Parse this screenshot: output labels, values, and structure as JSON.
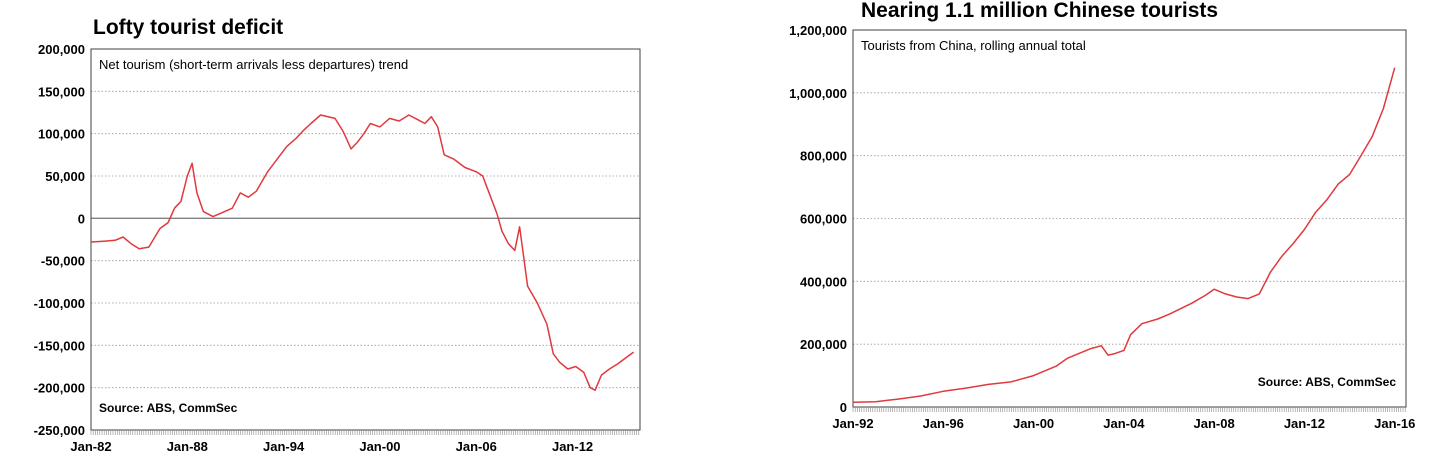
{
  "chart_data": [
    {
      "type": "line",
      "title": "Lofty tourist deficit",
      "annotation": "Net tourism (short-term arrivals less departures) trend",
      "source": "Source: ABS, CommSec",
      "ylim": [
        -250000,
        200000
      ],
      "y_ticks": [
        200000,
        150000,
        100000,
        50000,
        0,
        -50000,
        -100000,
        -150000,
        -200000,
        -250000
      ],
      "y_tick_labels": [
        "200,000",
        "150,000",
        "100,000",
        "50,000",
        "0",
        "-50,000",
        "-100,000",
        "-150,000",
        "-200,000",
        "-250,000"
      ],
      "xlim": [
        1982.0,
        2016.2
      ],
      "x_ticks": [
        1982,
        1988,
        1994,
        2000,
        2006,
        2012
      ],
      "x_tick_labels": [
        "Jan-82",
        "Jan-88",
        "Jan-94",
        "Jan-00",
        "Jan-06",
        "Jan-12"
      ],
      "grid": true,
      "line_color": "#e0393e",
      "series": [
        {
          "x": [
            1982.0,
            1982.8,
            1983.5,
            1984.0,
            1984.5,
            1985.0,
            1985.6,
            1986.3,
            1986.8,
            1987.2,
            1987.6,
            1988.0,
            1988.3,
            1988.6,
            1989.0,
            1989.6,
            1990.2,
            1990.8,
            1991.3,
            1991.8,
            1992.3,
            1993.0,
            1993.6,
            1994.2,
            1994.8,
            1995.3,
            1995.7,
            1996.3,
            1997.2,
            1997.7,
            1998.2,
            1998.6,
            1999.0,
            1999.4,
            2000.0,
            2000.6,
            2001.2,
            2001.8,
            2002.4,
            2002.8,
            2003.2,
            2003.6,
            2004.0,
            2004.6,
            2005.3,
            2006.0,
            2006.4,
            2006.7,
            2007.3,
            2007.6,
            2008.0,
            2008.4,
            2008.7,
            2009.2,
            2009.8,
            2010.4,
            2010.8,
            2011.2,
            2011.7,
            2012.2,
            2012.7,
            2013.1,
            2013.4,
            2013.8,
            2014.3,
            2014.8,
            2015.3,
            2015.8
          ],
          "y": [
            -28000,
            -27000,
            -26000,
            -22000,
            -30000,
            -36000,
            -34000,
            -12000,
            -5000,
            12000,
            20000,
            50000,
            65000,
            30000,
            8000,
            2000,
            7000,
            12000,
            30000,
            25000,
            32000,
            55000,
            70000,
            85000,
            95000,
            105000,
            112000,
            122000,
            118000,
            103000,
            82000,
            90000,
            100000,
            112000,
            108000,
            118000,
            115000,
            122000,
            116000,
            112000,
            120000,
            108000,
            75000,
            70000,
            60000,
            55000,
            50000,
            35000,
            5000,
            -15000,
            -30000,
            -38000,
            -10000,
            -80000,
            -100000,
            -125000,
            -160000,
            -170000,
            -178000,
            -175000,
            -182000,
            -200000,
            -203000,
            -185000,
            -178000,
            -172000,
            -165000,
            -158000
          ]
        }
      ]
    },
    {
      "type": "line",
      "title": "Nearing 1.1 million Chinese tourists",
      "annotation": "Tourists from China, rolling annual total",
      "source": "Source: ABS, CommSec",
      "ylim": [
        0,
        1200000
      ],
      "y_ticks": [
        0,
        200000,
        400000,
        600000,
        800000,
        1000000,
        1200000
      ],
      "y_tick_labels": [
        "0",
        "200,000",
        "400,000",
        "600,000",
        "800,000",
        "1,000,000",
        "1,200,000"
      ],
      "xlim": [
        1992.0,
        2016.5
      ],
      "x_ticks": [
        1992,
        1996,
        2000,
        2004,
        2008,
        2012,
        2016
      ],
      "x_tick_labels": [
        "Jan-92",
        "Jan-96",
        "Jan-00",
        "Jan-04",
        "Jan-08",
        "Jan-12",
        "Jan-16"
      ],
      "grid": true,
      "line_color": "#e0393e",
      "series": [
        {
          "x": [
            1992.0,
            1993.0,
            1994.0,
            1995.0,
            1996.0,
            1997.0,
            1998.0,
            1999.0,
            2000.0,
            2001.0,
            2001.5,
            2002.0,
            2002.5,
            2003.0,
            2003.3,
            2003.6,
            2004.0,
            2004.3,
            2004.8,
            2005.5,
            2006.0,
            2007.0,
            2007.6,
            2008.0,
            2008.5,
            2009.0,
            2009.5,
            2010.0,
            2010.5,
            2011.0,
            2011.5,
            2012.0,
            2012.5,
            2013.0,
            2013.5,
            2014.0,
            2014.5,
            2015.0,
            2015.5,
            2016.0
          ],
          "y": [
            15000,
            17000,
            25000,
            35000,
            50000,
            60000,
            72000,
            80000,
            100000,
            130000,
            155000,
            170000,
            185000,
            195000,
            165000,
            170000,
            180000,
            230000,
            265000,
            280000,
            295000,
            330000,
            355000,
            375000,
            360000,
            350000,
            345000,
            360000,
            430000,
            480000,
            520000,
            565000,
            620000,
            660000,
            710000,
            740000,
            800000,
            860000,
            950000,
            1080000
          ]
        }
      ]
    }
  ]
}
